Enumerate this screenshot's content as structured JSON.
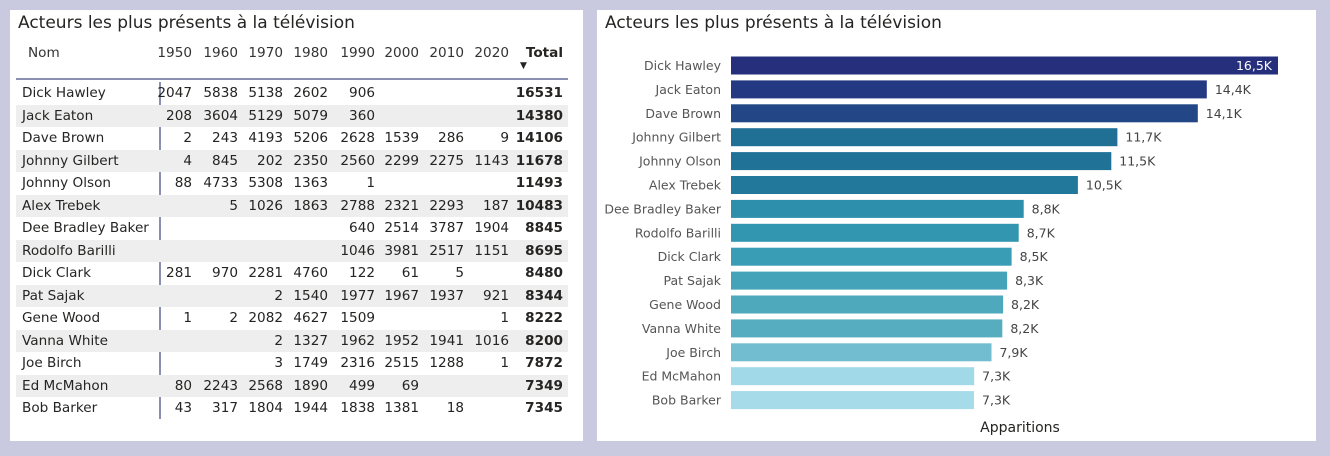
{
  "table_panel": {
    "title": "Acteurs les plus présents à la télévision",
    "columns": [
      "Nom",
      "1950",
      "1960",
      "1970",
      "1980",
      "1990",
      "2000",
      "2010",
      "2020",
      "Total"
    ],
    "sort_indicator": "▼",
    "rows": [
      {
        "name": "Dick Hawley",
        "vals": [
          "2047",
          "5838",
          "5138",
          "2602",
          "906",
          "",
          "",
          ""
        ],
        "total": "16531"
      },
      {
        "name": "Jack Eaton",
        "vals": [
          "208",
          "3604",
          "5129",
          "5079",
          "360",
          "",
          "",
          ""
        ],
        "total": "14380"
      },
      {
        "name": "Dave Brown",
        "vals": [
          "2",
          "243",
          "4193",
          "5206",
          "2628",
          "1539",
          "286",
          "9"
        ],
        "total": "14106"
      },
      {
        "name": "Johnny Gilbert",
        "vals": [
          "4",
          "845",
          "202",
          "2350",
          "2560",
          "2299",
          "2275",
          "1143"
        ],
        "total": "11678"
      },
      {
        "name": "Johnny Olson",
        "vals": [
          "88",
          "4733",
          "5308",
          "1363",
          "1",
          "",
          "",
          ""
        ],
        "total": "11493"
      },
      {
        "name": "Alex Trebek",
        "vals": [
          "",
          "5",
          "1026",
          "1863",
          "2788",
          "2321",
          "2293",
          "187"
        ],
        "total": "10483"
      },
      {
        "name": "Dee Bradley Baker",
        "vals": [
          "",
          "",
          "",
          "",
          "640",
          "2514",
          "3787",
          "1904"
        ],
        "total": "8845"
      },
      {
        "name": "Rodolfo Barilli",
        "vals": [
          "",
          "",
          "",
          "",
          "1046",
          "3981",
          "2517",
          "1151"
        ],
        "total": "8695"
      },
      {
        "name": "Dick Clark",
        "vals": [
          "281",
          "970",
          "2281",
          "4760",
          "122",
          "61",
          "5",
          ""
        ],
        "total": "8480"
      },
      {
        "name": "Pat Sajak",
        "vals": [
          "",
          "",
          "2",
          "1540",
          "1977",
          "1967",
          "1937",
          "921"
        ],
        "total": "8344"
      },
      {
        "name": "Gene Wood",
        "vals": [
          "1",
          "2",
          "2082",
          "4627",
          "1509",
          "",
          "",
          "1"
        ],
        "total": "8222"
      },
      {
        "name": "Vanna White",
        "vals": [
          "",
          "",
          "2",
          "1327",
          "1962",
          "1952",
          "1941",
          "1016"
        ],
        "total": "8200"
      },
      {
        "name": "Joe Birch",
        "vals": [
          "",
          "",
          "3",
          "1749",
          "2316",
          "2515",
          "1288",
          "1"
        ],
        "total": "7872"
      },
      {
        "name": "Ed McMahon",
        "vals": [
          "80",
          "2243",
          "2568",
          "1890",
          "499",
          "69",
          "",
          ""
        ],
        "total": "7349"
      },
      {
        "name": "Bob Barker",
        "vals": [
          "43",
          "317",
          "1804",
          "1944",
          "1838",
          "1381",
          "18",
          ""
        ],
        "total": "7345"
      }
    ]
  },
  "chart_panel": {
    "title": "Acteurs les plus présents à la télévision"
  },
  "chart_data": {
    "type": "bar",
    "orientation": "horizontal",
    "title": "Acteurs les plus présents à la télévision",
    "xlabel": "Apparitions",
    "ylabel": "",
    "categories": [
      "Dick Hawley",
      "Jack Eaton",
      "Dave Brown",
      "Johnny Gilbert",
      "Johnny Olson",
      "Alex Trebek",
      "Dee Bradley Baker",
      "Rodolfo Barilli",
      "Dick Clark",
      "Pat Sajak",
      "Gene Wood",
      "Vanna White",
      "Joe Birch",
      "Ed McMahon",
      "Bob Barker"
    ],
    "values": [
      16531,
      14380,
      14106,
      11678,
      11493,
      10483,
      8845,
      8695,
      8480,
      8344,
      8222,
      8200,
      7872,
      7349,
      7345
    ],
    "data_labels": [
      "16,5K",
      "14,4K",
      "14,1K",
      "11,7K",
      "11,5K",
      "10,5K",
      "8,8K",
      "8,7K",
      "8,5K",
      "8,3K",
      "8,2K",
      "8,2K",
      "7,9K",
      "7,3K",
      "7,3K"
    ],
    "colors": [
      "#252f7b",
      "#233a82",
      "#224686",
      "#206f95",
      "#207397",
      "#22789a",
      "#2d8fac",
      "#3296b0",
      "#3a9db6",
      "#44a3b9",
      "#4ea9bc",
      "#56adbf",
      "#73bdd0",
      "#a1d9e8",
      "#a6dbea"
    ],
    "label_inside_color": "#ffffff",
    "label_outside_color": "#444444",
    "xlim": [
      0,
      16531
    ]
  }
}
